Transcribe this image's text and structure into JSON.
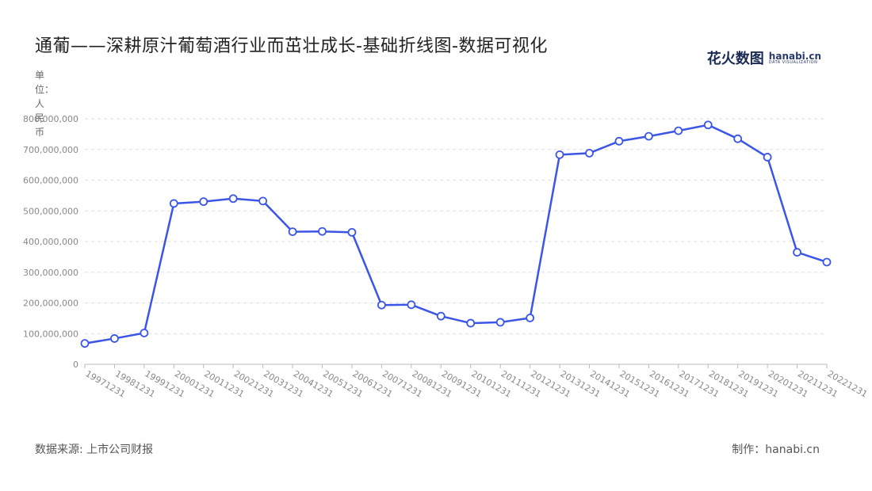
{
  "title": "通葡——深耕原汁葡萄酒行业而茁壮成长-基础折线图-数据可视化",
  "logo": {
    "cn": "花火数图",
    "en": "hanabi.cn",
    "en_sub": "DATA VISUALIZATION"
  },
  "unit_label": "单位：人民币",
  "source": "数据来源: 上市公司财报",
  "credit": "制作：hanabi.cn",
  "colors": {
    "line": "#3b55e6",
    "grid": "#dddddd",
    "axis_text": "#888888"
  },
  "chart_data": {
    "type": "line",
    "title": "通葡——深耕原汁葡萄酒行业而茁壮成长-基础折线图-数据可视化",
    "ylabel": "单位：人民币",
    "xlabel": "",
    "ylim": [
      0,
      800000000
    ],
    "yticks": [
      "0",
      "100,000,000",
      "200,000,000",
      "300,000,000",
      "400,000,000",
      "500,000,000",
      "600,000,000",
      "700,000,000",
      "800,000,000"
    ],
    "ytick_values": [
      0,
      100000000,
      200000000,
      300000000,
      400000000,
      500000000,
      600000000,
      700000000,
      800000000
    ],
    "grid": true,
    "categories": [
      "19971231",
      "19981231",
      "19991231",
      "20001231",
      "20011231",
      "20021231",
      "20031231",
      "20041231",
      "20051231",
      "20061231",
      "20071231",
      "20081231",
      "20091231",
      "20101231",
      "20111231",
      "20121231",
      "20131231",
      "20141231",
      "20151231",
      "20161231",
      "20171231",
      "20181231",
      "20191231",
      "20201231",
      "20211231",
      "20221231"
    ],
    "series": [
      {
        "values": [
          68000000,
          84000000,
          102000000,
          524000000,
          530000000,
          540000000,
          532000000,
          432000000,
          433000000,
          430000000,
          193000000,
          194000000,
          157000000,
          134000000,
          137000000,
          151000000,
          683000000,
          688000000,
          727000000,
          743000000,
          761000000,
          780000000,
          735000000,
          675000000,
          365000000,
          333000000
        ]
      }
    ]
  }
}
